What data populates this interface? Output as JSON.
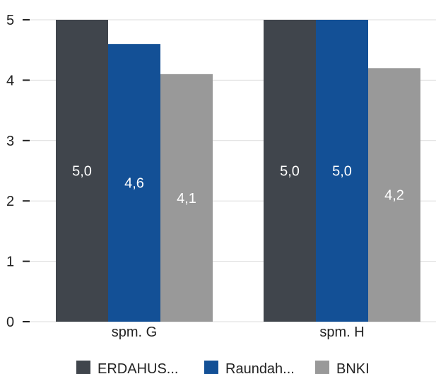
{
  "chart_data": {
    "type": "bar",
    "categories": [
      "spm. G",
      "spm. H"
    ],
    "series": [
      {
        "name": "ERDAHUS...",
        "values": [
          5.0,
          5.0
        ],
        "labels": [
          "5,0",
          "5,0"
        ],
        "color": "#40454c"
      },
      {
        "name": "Raundah...",
        "values": [
          4.6,
          5.0
        ],
        "labels": [
          "4,6",
          "5,0"
        ],
        "color": "#135096"
      },
      {
        "name": "BNKI",
        "values": [
          4.1,
          4.2
        ],
        "labels": [
          "4,1",
          "4,2"
        ],
        "color": "#999999"
      }
    ],
    "yticks": [
      "0",
      "1",
      "2",
      "3",
      "4",
      "5"
    ],
    "ylim": [
      0,
      5
    ],
    "grid": true,
    "legend_position": "bottom"
  }
}
